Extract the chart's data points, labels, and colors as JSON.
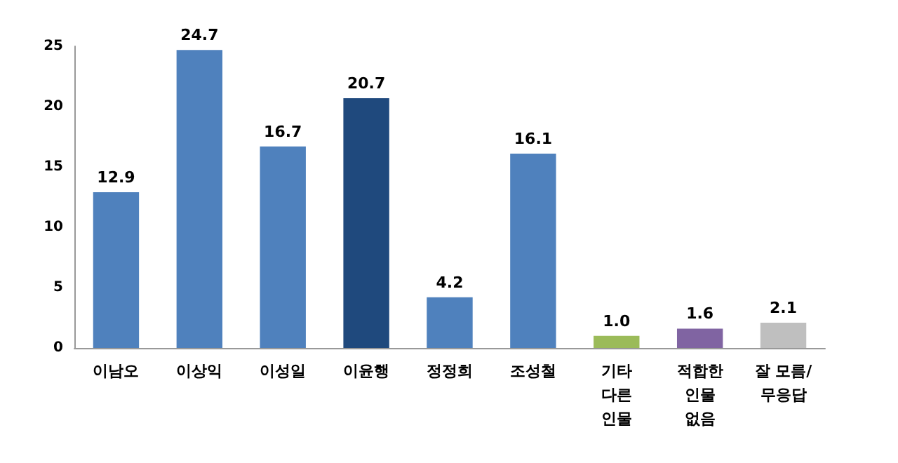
{
  "chart_data": {
    "type": "bar",
    "categories": [
      "이남오",
      "이상익",
      "이성일",
      "이윤행",
      "정정희",
      "조성철",
      "기타\n다른\n인물",
      "적합한\n인물\n없음",
      "잘 모름/\n무응답"
    ],
    "values": [
      12.9,
      24.7,
      16.7,
      20.7,
      4.2,
      16.1,
      1.0,
      1.6,
      2.1
    ],
    "colors": [
      "#4f81bd",
      "#4f81bd",
      "#4f81bd",
      "#1f497d",
      "#4f81bd",
      "#4f81bd",
      "#9bbb59",
      "#8064a2",
      "#bfbfbf"
    ],
    "value_labels": [
      "12.9",
      "24.7",
      "16.7",
      "20.7",
      "4.2",
      "16.1",
      "1.0",
      "1.6",
      "2.1"
    ],
    "ylim": [
      0,
      25
    ],
    "yticks": [
      0,
      5,
      10,
      15,
      20,
      25
    ],
    "grid": false
  }
}
